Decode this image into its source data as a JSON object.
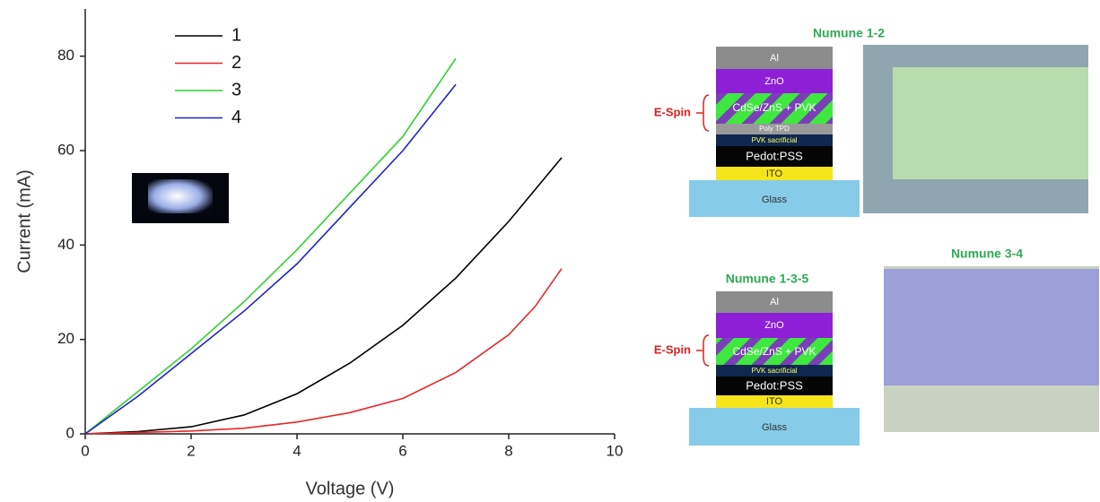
{
  "chart_data": {
    "type": "line",
    "x_label": "Voltage (V)",
    "y_label": "Current (mA)",
    "xlim": [
      0,
      10
    ],
    "xticks": [
      0,
      2,
      4,
      6,
      8,
      10
    ],
    "ylim": [
      0,
      90
    ],
    "yticks": [
      0,
      20,
      40,
      60,
      80
    ],
    "legend": "top-left",
    "series": [
      {
        "name": "1",
        "color": "#000000",
        "x": [
          0,
          1,
          2,
          3,
          4,
          5,
          6,
          7,
          8,
          9
        ],
        "values": [
          0,
          0.5,
          1.5,
          4,
          8.5,
          15,
          23,
          33,
          45,
          58.5
        ]
      },
      {
        "name": "2",
        "color": "#e8262a",
        "x": [
          0,
          1,
          2,
          3,
          4,
          5,
          6,
          7,
          8,
          8.5,
          9
        ],
        "values": [
          0,
          0.3,
          0.6,
          1.2,
          2.5,
          4.5,
          7.5,
          13,
          21,
          27,
          35
        ]
      },
      {
        "name": "3",
        "color": "#2fd12f",
        "x": [
          0,
          1,
          2,
          3,
          4,
          5,
          6,
          7
        ],
        "values": [
          0,
          9,
          18,
          28,
          39,
          51,
          63,
          79.5
        ]
      },
      {
        "name": "4",
        "color": "#2222c8",
        "x": [
          0,
          1,
          2,
          3,
          4,
          5,
          6,
          7
        ],
        "values": [
          0,
          8,
          17,
          26,
          36,
          48,
          60,
          74
        ]
      }
    ]
  },
  "devices": [
    {
      "title": "Numune 1-2",
      "note": "E-Spin",
      "layers": [
        "Al",
        "ZnO",
        "CdSe/ZnS + PVK",
        "Poly TPD",
        "PVK sacrificial",
        "Pedot:PSS",
        "ITO",
        "Glass"
      ]
    },
    {
      "title": "Numune 1-3-5",
      "note": "E-Spin",
      "layers": [
        "Al",
        "ZnO",
        "CdSe/ZnS + PVK",
        "PVK sacrificial",
        "Pedot:PSS",
        "ITO",
        "Glass"
      ]
    },
    {
      "title": "Numune 3-4"
    }
  ]
}
